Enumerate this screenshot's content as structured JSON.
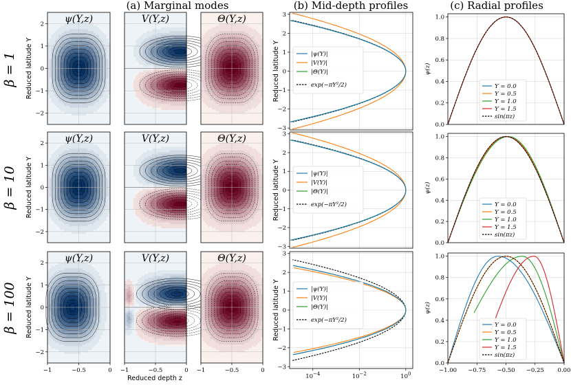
{
  "figure": {
    "col_titles": [
      "(a) Marginal modes",
      "(b) Mid-depth profiles",
      "(c) Radial profiles"
    ],
    "row_labels": [
      "β = 1",
      "β = 10",
      "β = 100"
    ],
    "xlabel_a": "Reduced depth z",
    "colors": {
      "blue": "#1f77b4",
      "orange": "#ff7f0e",
      "green": "#2ca02c",
      "red": "#d62728",
      "dashed": "#000000",
      "blue_fill": "#2166ac",
      "red_fill": "#b2182b"
    }
  },
  "chart_data": [
    {
      "panel": "a-marginal-modes",
      "type": "heatmap",
      "subtitles": [
        "ψ(Y,z)",
        "V(Y,z)",
        "Θ(Y,z)"
      ],
      "ylabel": "Reduced latitude Y",
      "xlabel": "Reduced depth z",
      "xlim": [
        -1,
        0
      ],
      "ylim": [
        -2.5,
        2.5
      ],
      "xticks": [
        -1,
        -0.5,
        0
      ],
      "yticks": [
        -2,
        -1,
        0,
        1,
        2
      ],
      "rows": [
        {
          "beta": 1,
          "psi_center": [
            -0.5,
            0
          ],
          "V_extrema_Y": [
            0.75,
            -0.75
          ],
          "V_extrema_z": -0.1,
          "Theta_center": [
            -0.5,
            0
          ]
        },
        {
          "beta": 10,
          "psi_center": [
            -0.5,
            0
          ],
          "V_extrema_Y": [
            0.75,
            -0.75
          ],
          "V_extrema_z": -0.1,
          "Theta_center": [
            -0.5,
            0
          ]
        },
        {
          "beta": 100,
          "psi_center": [
            -0.6,
            0
          ],
          "V_extrema_Y": [
            0.6,
            -0.6
          ],
          "V_extrema_z": -0.15,
          "Theta_center": [
            -0.5,
            0
          ]
        }
      ]
    },
    {
      "panel": "b-mid-depth-profiles",
      "type": "line",
      "xscale": "log",
      "xlim": [
        1e-05,
        2
      ],
      "xticks": [
        "10^-4",
        "10^-2",
        "10^0"
      ],
      "ylim": [
        -3.1,
        3.1
      ],
      "yticks": [
        -3,
        -2,
        -1,
        0,
        1,
        2,
        3
      ],
      "ylabel": "Reduced latitude Y",
      "legend": "center-left",
      "series": [
        {
          "name": "|ψ(Y)|",
          "color": "blue"
        },
        {
          "name": "|V(Y)|",
          "color": "orange"
        },
        {
          "name": "|Θ(Y)|",
          "color": "green"
        },
        {
          "name": "exp(−πY²/2)",
          "color": "dashed"
        }
      ],
      "rows": [
        {
          "beta": 1,
          "psi_a": 1.6,
          "V_a": 1.2,
          "Theta_a": 1.6
        },
        {
          "beta": 10,
          "psi_a": 1.6,
          "V_a": 1.2,
          "Theta_a": 1.6
        },
        {
          "beta": 100,
          "psi_a": 2.0,
          "V_a": 2.2,
          "Theta_a": 2.0
        }
      ]
    },
    {
      "panel": "c-radial-profiles",
      "type": "line",
      "xlim": [
        -1,
        0
      ],
      "xticks": [
        -1.0,
        -0.75,
        -0.5,
        -0.25,
        0.0
      ],
      "ylim": [
        0,
        1.03
      ],
      "yticks": [
        0.0,
        0.2,
        0.4,
        0.6,
        0.8,
        1.0
      ],
      "ylabel": "ψ(z)",
      "legend": "lower-center",
      "series": [
        {
          "name": "Y = 0.0",
          "color": "blue"
        },
        {
          "name": "Y = 0.5",
          "color": "orange"
        },
        {
          "name": "Y = 1.0",
          "color": "green"
        },
        {
          "name": "Y = 1.5",
          "color": "red"
        },
        {
          "name": "sin(πz)",
          "color": "dashed"
        }
      ],
      "rows": [
        {
          "beta": 1,
          "peak_z": [
            -0.5,
            -0.5,
            -0.5,
            -0.5
          ]
        },
        {
          "beta": 10,
          "peak_z": [
            -0.5,
            -0.49,
            -0.48,
            -0.5
          ]
        },
        {
          "beta": 100,
          "peak_z": [
            -0.57,
            -0.5,
            -0.36,
            -0.26
          ]
        }
      ]
    }
  ]
}
